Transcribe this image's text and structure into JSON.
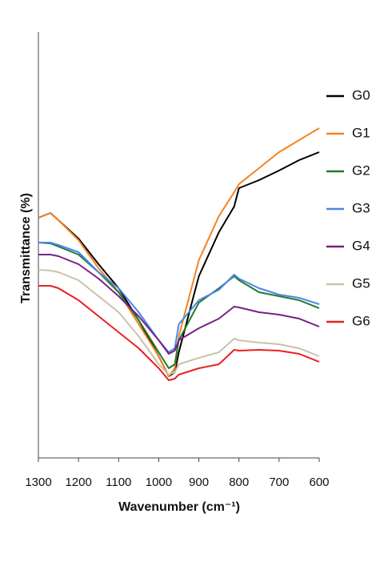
{
  "chart_data": {
    "type": "line",
    "x_label": "Wavenumber (cm⁻¹)",
    "y_label": "Transmittance (%)",
    "x": [
      1300,
      1270,
      1250,
      1200,
      1150,
      1100,
      1050,
      1000,
      975,
      960,
      950,
      900,
      850,
      812,
      800,
      750,
      700,
      650,
      600
    ],
    "xlim": [
      1300,
      600
    ],
    "xticks": [
      1300,
      1200,
      1100,
      1000,
      900,
      800,
      700,
      600
    ],
    "ylim": [
      0,
      532
    ],
    "series": [
      {
        "name": "G0",
        "color": "#000000",
        "values": [
          300,
          306,
          297,
          274,
          242,
          212,
          172,
          127,
          102,
          107,
          132,
          227,
          282,
          314,
          337,
          347,
          359,
          372,
          382
        ]
      },
      {
        "name": "G1",
        "color": "#f58220",
        "values": [
          300,
          306,
          297,
          272,
          237,
          207,
          167,
          127,
          102,
          112,
          152,
          247,
          302,
          332,
          342,
          362,
          382,
          397,
          412
        ]
      },
      {
        "name": "G2",
        "color": "#217a2e",
        "values": [
          269,
          268,
          264,
          254,
          232,
          207,
          172,
          132,
          112,
          117,
          147,
          194,
          212,
          227,
          222,
          207,
          202,
          197,
          187
        ]
      },
      {
        "name": "G3",
        "color": "#4a86e8",
        "values": [
          269,
          269,
          266,
          257,
          232,
          212,
          182,
          147,
          132,
          137,
          167,
          197,
          210,
          229,
          224,
          212,
          204,
          200,
          192
        ]
      },
      {
        "name": "G4",
        "color": "#7a1f86",
        "values": [
          254,
          254,
          252,
          242,
          224,
          202,
          177,
          147,
          130,
          134,
          147,
          162,
          174,
          189,
          188,
          182,
          179,
          174,
          164
        ]
      },
      {
        "name": "G5",
        "color": "#c8c3a8",
        "values": [
          235,
          234,
          232,
          222,
          202,
          182,
          152,
          117,
          104,
          107,
          117,
          125,
          132,
          149,
          147,
          144,
          142,
          137,
          127
        ]
      },
      {
        "name": "G6",
        "color": "#e8201f",
        "values": [
          215,
          215,
          212,
          197,
          177,
          157,
          137,
          112,
          97,
          99,
          104,
          112,
          117,
          135,
          134,
          135,
          134,
          130,
          120
        ]
      }
    ]
  }
}
